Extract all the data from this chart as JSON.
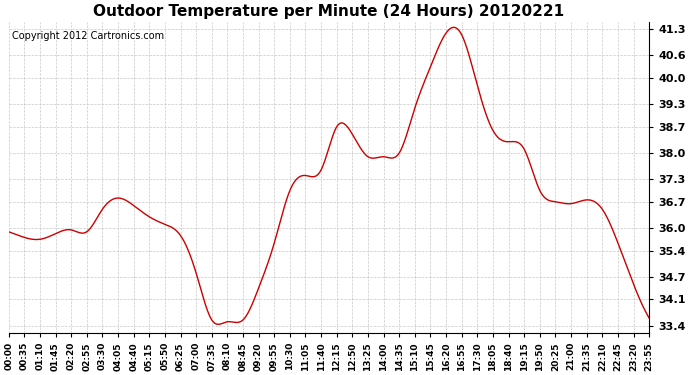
{
  "title": "Outdoor Temperature per Minute (24 Hours) 20120221",
  "copyright_text": "Copyright 2012 Cartronics.com",
  "line_color": "#cc0000",
  "background_color": "#ffffff",
  "plot_bg_color": "#ffffff",
  "grid_color": "#bbbbbb",
  "yticks": [
    33.4,
    34.1,
    34.7,
    35.4,
    36.0,
    36.7,
    37.3,
    38.0,
    38.7,
    39.3,
    40.0,
    40.6,
    41.3
  ],
  "ylim": [
    33.2,
    41.5
  ],
  "xtick_labels": [
    "00:00",
    "00:35",
    "01:10",
    "01:45",
    "02:20",
    "02:55",
    "03:30",
    "04:05",
    "04:40",
    "05:15",
    "05:50",
    "06:25",
    "07:00",
    "07:35",
    "08:10",
    "08:45",
    "09:20",
    "09:55",
    "10:30",
    "11:05",
    "11:40",
    "12:15",
    "12:50",
    "13:25",
    "14:00",
    "14:35",
    "15:10",
    "15:45",
    "16:20",
    "16:55",
    "17:30",
    "18:05",
    "18:40",
    "19:15",
    "19:50",
    "20:25",
    "21:00",
    "21:35",
    "22:10",
    "22:45",
    "23:20",
    "23:55"
  ],
  "curve_keypoints_x": [
    0,
    35,
    70,
    105,
    140,
    175,
    210,
    245,
    280,
    315,
    350,
    385,
    420,
    455,
    490,
    525,
    560,
    595,
    630,
    665,
    700,
    735,
    770,
    805,
    840,
    875,
    910,
    945,
    980,
    1015,
    1050,
    1085,
    1120,
    1155,
    1190,
    1225,
    1260,
    1295,
    1330,
    1365,
    1400,
    1435
  ],
  "curve_keypoints_y": [
    35.9,
    35.75,
    35.7,
    35.85,
    35.95,
    35.9,
    36.5,
    36.8,
    36.6,
    36.3,
    36.1,
    35.8,
    34.8,
    33.55,
    33.5,
    33.55,
    34.4,
    35.6,
    37.0,
    37.4,
    37.55,
    38.7,
    38.5,
    37.9,
    37.9,
    38.0,
    39.2,
    40.3,
    41.2,
    41.15,
    39.8,
    38.6,
    38.3,
    38.1,
    37.0,
    36.7,
    36.65,
    36.75,
    36.5,
    35.6,
    34.5,
    33.6
  ]
}
